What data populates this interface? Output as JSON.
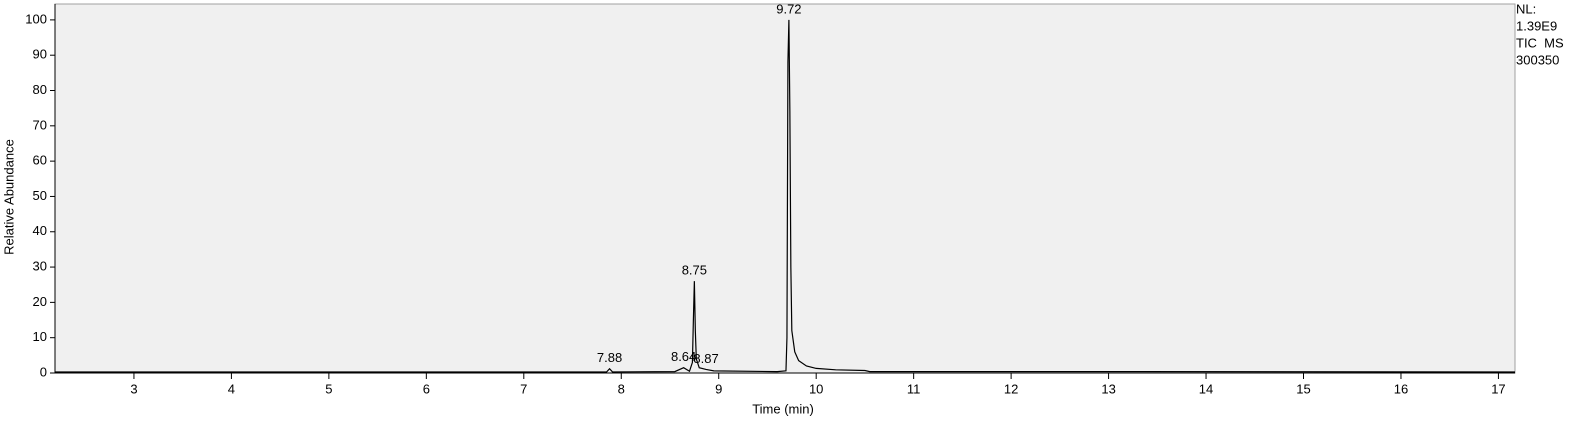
{
  "chart_data": {
    "type": "line",
    "x_label": "Time (min)",
    "y_label": "Relative Abundance",
    "x": [
      2.19,
      7.85,
      7.88,
      7.91,
      8.55,
      8.64,
      8.7,
      8.73,
      8.74,
      8.75,
      8.76,
      8.77,
      8.8,
      8.87,
      8.95,
      9.6,
      9.69,
      9.7,
      9.71,
      9.72,
      9.73,
      9.74,
      9.75,
      9.78,
      9.82,
      9.9,
      10.0,
      10.2,
      10.5,
      10.55,
      12.5,
      17.17
    ],
    "series": [
      {
        "color": "#000000",
        "values": [
          0.3,
          0.3,
          1.2,
          0.3,
          0.4,
          1.5,
          0.5,
          3,
          15,
          26,
          12,
          4,
          1.5,
          1.0,
          0.6,
          0.4,
          0.6,
          10,
          88,
          100,
          74,
          30,
          12,
          6,
          3.5,
          2,
          1.3,
          0.9,
          0.7,
          0.4,
          0.4,
          0.3
        ]
      }
    ],
    "peak_labels": [
      {
        "x": 7.88,
        "y": 1.2
      },
      {
        "x": 8.64,
        "y": 1.5
      },
      {
        "x": 8.75,
        "y": 26
      },
      {
        "x": 8.87,
        "y": 1.0
      },
      {
        "x": 9.72,
        "y": 100
      }
    ],
    "side_labels": [
      "NL:",
      "1.39E9",
      "TIC  MS",
      "300350"
    ],
    "xlim": [
      2.19,
      17.17
    ],
    "ylim": [
      0,
      104.5
    ],
    "xticks": [
      3,
      4,
      5,
      6,
      7,
      8,
      9,
      10,
      11,
      12,
      13,
      14,
      15,
      16,
      17
    ],
    "yticks": [
      0,
      10,
      20,
      30,
      40,
      50,
      60,
      70,
      80,
      90,
      100
    ],
    "plot_background": "#f0f0f0"
  }
}
